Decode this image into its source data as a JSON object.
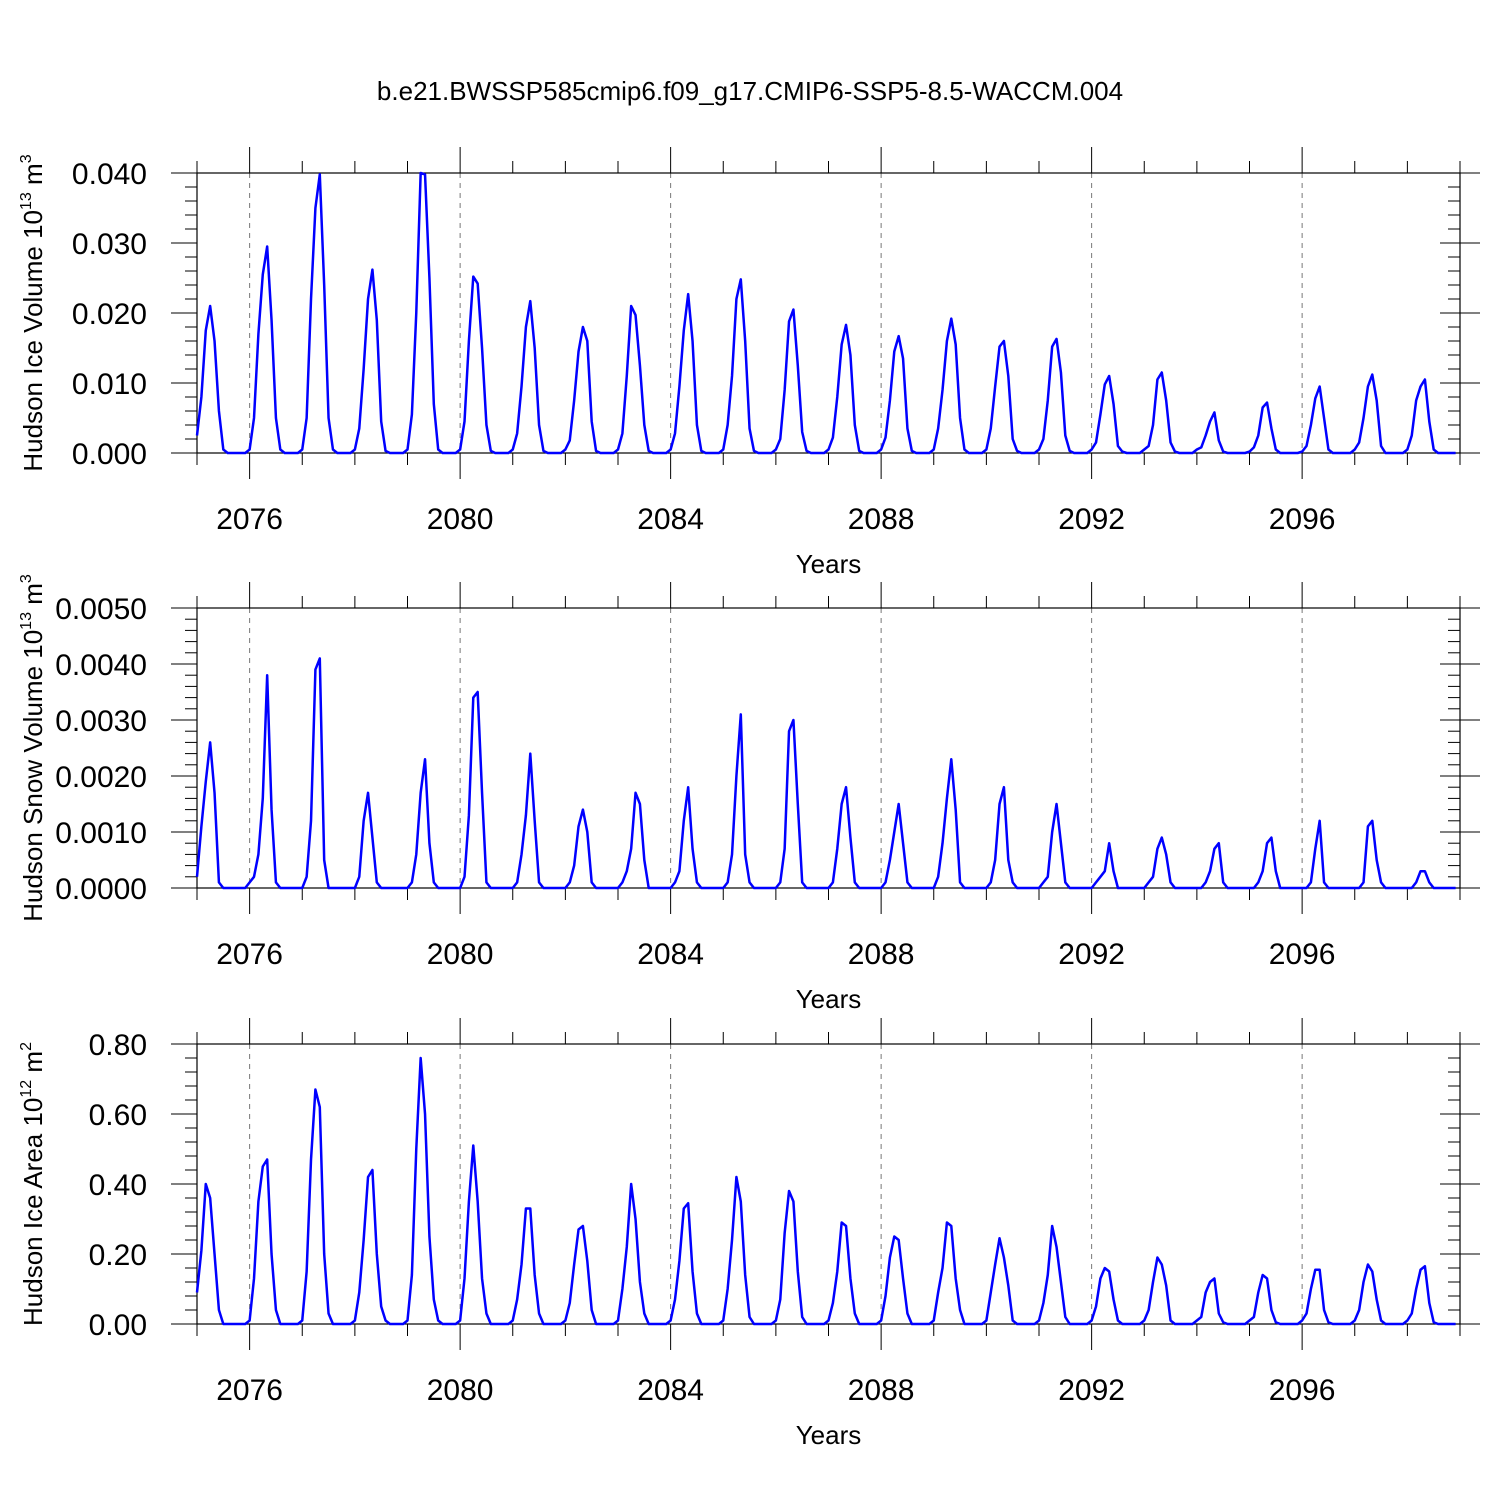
{
  "figure_title": "b.e21.BWSSP585cmip6.f09_g17.CMIP6-SSP5-8.5-WACCM.004",
  "chart_data": [
    {
      "type": "line",
      "title": "b.e21.BWSSP585cmip6.f09_g17.CMIP6-SSP5-8.5-WACCM.004",
      "xlabel": "Years",
      "ylabel": "Hudson Ice Volume 10",
      "ylabel_exp": "13",
      "ylabel_unit": " m",
      "ylabel_unit_exp": "3",
      "xlim": [
        2075,
        2099
      ],
      "ylim": [
        0,
        0.04
      ],
      "grid": "vertical dashed at major ticks",
      "x_ticks": [
        2076,
        2080,
        2084,
        2088,
        2092,
        2096
      ],
      "x_tick_labels": [
        "2076",
        "2080",
        "2084",
        "2088",
        "2092",
        "2096"
      ],
      "y_ticks": [
        0,
        0.01,
        0.02,
        0.03,
        0.04
      ],
      "y_tick_labels": [
        "0.000",
        "0.010",
        "0.020",
        "0.030",
        "0.040"
      ],
      "series": [
        {
          "name": "Hudson Ice Volume",
          "color": "#0000ff",
          "start_year": 2075,
          "step": "monthly",
          "values": [
            0.0025,
            0.008,
            0.0175,
            0.021,
            0.016,
            0.006,
            0.0005,
            0,
            0,
            0,
            0,
            0,
            0.0005,
            0.005,
            0.017,
            0.0255,
            0.0295,
            0.019,
            0.005,
            0.0005,
            0,
            0,
            0,
            0,
            0.0005,
            0.005,
            0.022,
            0.035,
            0.0398,
            0.024,
            0.005,
            0.0005,
            0,
            0,
            0,
            0,
            0.0005,
            0.0035,
            0.012,
            0.022,
            0.0262,
            0.019,
            0.0045,
            0.0003,
            0,
            0,
            0,
            0,
            0.0005,
            0.0055,
            0.02,
            0.04,
            0.0398,
            0.025,
            0.007,
            0.0005,
            0,
            0,
            0,
            0,
            0.0005,
            0.0045,
            0.016,
            0.0252,
            0.0242,
            0.015,
            0.004,
            0.0003,
            0,
            0,
            0,
            0,
            0.0005,
            0.0028,
            0.0095,
            0.018,
            0.0217,
            0.015,
            0.004,
            0.0003,
            0,
            0,
            0,
            0,
            0.0005,
            0.0018,
            0.0075,
            0.0145,
            0.018,
            0.016,
            0.0045,
            0.0003,
            0,
            0,
            0,
            0,
            0.0005,
            0.0028,
            0.011,
            0.021,
            0.0197,
            0.0125,
            0.004,
            0.0003,
            0,
            0,
            0,
            0,
            0.0005,
            0.0028,
            0.0095,
            0.0175,
            0.0227,
            0.016,
            0.004,
            0.0003,
            0,
            0,
            0,
            0,
            0.0005,
            0.004,
            0.011,
            0.022,
            0.0248,
            0.016,
            0.0035,
            0.0003,
            0,
            0,
            0,
            0,
            0.0005,
            0.002,
            0.009,
            0.0188,
            0.0205,
            0.0125,
            0.003,
            0.0003,
            0,
            0,
            0,
            0,
            0.0005,
            0.0022,
            0.008,
            0.0155,
            0.0183,
            0.014,
            0.004,
            0.0003,
            0,
            0,
            0,
            0,
            0.0005,
            0.0022,
            0.0075,
            0.0145,
            0.0167,
            0.0135,
            0.0035,
            0.0003,
            0,
            0,
            0,
            0,
            0.0005,
            0.0035,
            0.009,
            0.016,
            0.0192,
            0.0155,
            0.005,
            0.0005,
            0,
            0,
            0,
            0,
            0.0005,
            0.0035,
            0.0095,
            0.0152,
            0.016,
            0.011,
            0.002,
            0.0003,
            0,
            0,
            0,
            0,
            0.0005,
            0.002,
            0.0075,
            0.0152,
            0.0163,
            0.0115,
            0.0025,
            0.0003,
            0,
            0,
            0,
            0,
            0.0005,
            0.0015,
            0.0055,
            0.0098,
            0.011,
            0.007,
            0.001,
            0.0002,
            0,
            0,
            0,
            0,
            0.0005,
            0.001,
            0.004,
            0.0105,
            0.0115,
            0.0075,
            0.0015,
            0.0002,
            0,
            0,
            0,
            0,
            0.0005,
            0.0008,
            0.0025,
            0.0045,
            0.0058,
            0.0018,
            0.0002,
            0,
            0,
            0,
            0,
            0,
            0.0002,
            0.0008,
            0.0025,
            0.0065,
            0.0072,
            0.0035,
            0.0005,
            0,
            0,
            0,
            0,
            0,
            0.0002,
            0.001,
            0.004,
            0.0078,
            0.0095,
            0.005,
            0.0005,
            0,
            0,
            0,
            0,
            0,
            0.0005,
            0.0015,
            0.005,
            0.0095,
            0.0112,
            0.0075,
            0.001,
            0,
            0,
            0,
            0,
            0,
            0.0005,
            0.0025,
            0.0075,
            0.0095,
            0.0105,
            0.0045,
            0.0005,
            0,
            0,
            0,
            0,
            0
          ]
        }
      ]
    },
    {
      "type": "line",
      "xlabel": "Years",
      "ylabel": "Hudson Snow Volume 10",
      "ylabel_exp": "13",
      "ylabel_unit": " m",
      "ylabel_unit_exp": "3",
      "xlim": [
        2075,
        2099
      ],
      "ylim": [
        0,
        0.005
      ],
      "grid": "vertical dashed at major ticks",
      "x_ticks": [
        2076,
        2080,
        2084,
        2088,
        2092,
        2096
      ],
      "x_tick_labels": [
        "2076",
        "2080",
        "2084",
        "2088",
        "2092",
        "2096"
      ],
      "y_ticks": [
        0,
        0.001,
        0.002,
        0.003,
        0.004,
        0.005
      ],
      "y_tick_labels": [
        "0.0000",
        "0.0010",
        "0.0020",
        "0.0030",
        "0.0040",
        "0.0050"
      ],
      "series": [
        {
          "name": "Hudson Snow Volume",
          "color": "#0000ff",
          "start_year": 2075,
          "step": "monthly",
          "values": [
            0.0002,
            0.0011,
            0.0019,
            0.0026,
            0.0017,
            0.0001,
            0,
            0,
            0,
            0,
            0,
            0,
            0.0001,
            0.0002,
            0.0006,
            0.0016,
            0.0038,
            0.0014,
            0.0001,
            0,
            0,
            0,
            0,
            0,
            0,
            0.0002,
            0.0012,
            0.0039,
            0.0041,
            0.0005,
            0,
            0,
            0,
            0,
            0,
            0,
            0,
            0.0002,
            0.0012,
            0.0017,
            0.0009,
            0.0001,
            0,
            0,
            0,
            0,
            0,
            0,
            0,
            0.0001,
            0.0006,
            0.0017,
            0.0023,
            0.0008,
            0.0001,
            0,
            0,
            0,
            0,
            0,
            0,
            0.0002,
            0.0013,
            0.0034,
            0.0035,
            0.0017,
            0.0001,
            0,
            0,
            0,
            0,
            0,
            0,
            0.0001,
            0.0006,
            0.0013,
            0.0024,
            0.0012,
            0.0001,
            0,
            0,
            0,
            0,
            0,
            0,
            0.0001,
            0.0004,
            0.0011,
            0.0014,
            0.001,
            0.0001,
            0,
            0,
            0,
            0,
            0,
            0,
            0.0001,
            0.0003,
            0.0007,
            0.0017,
            0.0015,
            0.0005,
            0,
            0,
            0,
            0,
            0,
            0,
            0.0001,
            0.0003,
            0.0012,
            0.0018,
            0.0007,
            0.0001,
            0,
            0,
            0,
            0,
            0,
            0,
            0.0001,
            0.0006,
            0.002,
            0.0031,
            0.0006,
            0.0001,
            0,
            0,
            0,
            0,
            0,
            0,
            0.0001,
            0.0007,
            0.0028,
            0.003,
            0.0015,
            0.0001,
            0,
            0,
            0,
            0,
            0,
            0,
            0.0001,
            0.0007,
            0.0015,
            0.0018,
            0.0009,
            0.0001,
            0,
            0,
            0,
            0,
            0,
            0,
            0.0001,
            0.0005,
            0.001,
            0.0015,
            0.0008,
            0.0001,
            0,
            0,
            0,
            0,
            0,
            0,
            0.0002,
            0.0008,
            0.0016,
            0.0023,
            0.0014,
            0.0001,
            0,
            0,
            0,
            0,
            0,
            0,
            0.0001,
            0.0005,
            0.0015,
            0.0018,
            0.0005,
            0.0001,
            0,
            0,
            0,
            0,
            0,
            0,
            0.0001,
            0.0002,
            0.001,
            0.0015,
            0.0008,
            0.0001,
            0,
            0,
            0,
            0,
            0,
            0,
            0.0001,
            0.0002,
            0.0003,
            0.0008,
            0.0003,
            0,
            0,
            0,
            0,
            0,
            0,
            0,
            0.0001,
            0.0002,
            0.0007,
            0.0009,
            0.0006,
            0.0001,
            0,
            0,
            0,
            0,
            0,
            0,
            0,
            0.0001,
            0.0003,
            0.0007,
            0.0008,
            0.0001,
            0,
            0,
            0,
            0,
            0,
            0,
            0,
            0.0001,
            0.0003,
            0.0008,
            0.0009,
            0.0003,
            0,
            0,
            0,
            0,
            0,
            0,
            0,
            0.0001,
            0.0007,
            0.0012,
            0.0001,
            0,
            0,
            0,
            0,
            0,
            0,
            0,
            0,
            0.0001,
            0.0011,
            0.0012,
            0.0005,
            0.0001,
            0,
            0,
            0,
            0,
            0,
            0,
            0,
            0.0001,
            0.0003,
            0.0003,
            0.0001,
            0,
            0,
            0,
            0,
            0,
            0
          ]
        }
      ]
    },
    {
      "type": "line",
      "xlabel": "Years",
      "ylabel": "Hudson Ice Area 10",
      "ylabel_exp": "12",
      "ylabel_unit": " m",
      "ylabel_unit_exp": "2",
      "xlim": [
        2075,
        2099
      ],
      "ylim": [
        0,
        0.8
      ],
      "grid": "vertical dashed at major ticks",
      "x_ticks": [
        2076,
        2080,
        2084,
        2088,
        2092,
        2096
      ],
      "x_tick_labels": [
        "2076",
        "2080",
        "2084",
        "2088",
        "2092",
        "2096"
      ],
      "y_ticks": [
        0,
        0.2,
        0.4,
        0.6,
        0.8
      ],
      "y_tick_labels": [
        "0.00",
        "0.20",
        "0.40",
        "0.60",
        "0.80"
      ],
      "series": [
        {
          "name": "Hudson Ice Area",
          "color": "#0000ff",
          "start_year": 2075,
          "step": "monthly",
          "values": [
            0.09,
            0.21,
            0.4,
            0.36,
            0.2,
            0.04,
            0,
            0,
            0,
            0,
            0,
            0,
            0.01,
            0.13,
            0.35,
            0.45,
            0.47,
            0.2,
            0.04,
            0,
            0,
            0,
            0,
            0,
            0.01,
            0.15,
            0.47,
            0.67,
            0.62,
            0.2,
            0.03,
            0,
            0,
            0,
            0,
            0,
            0.01,
            0.09,
            0.24,
            0.42,
            0.44,
            0.2,
            0.05,
            0.01,
            0,
            0,
            0,
            0,
            0.01,
            0.14,
            0.5,
            0.76,
            0.6,
            0.25,
            0.07,
            0.01,
            0,
            0,
            0,
            0,
            0.01,
            0.13,
            0.35,
            0.51,
            0.35,
            0.13,
            0.03,
            0,
            0,
            0,
            0,
            0,
            0.01,
            0.07,
            0.17,
            0.33,
            0.33,
            0.14,
            0.03,
            0,
            0,
            0,
            0,
            0,
            0.01,
            0.06,
            0.17,
            0.27,
            0.28,
            0.18,
            0.04,
            0,
            0,
            0,
            0,
            0,
            0.01,
            0.1,
            0.22,
            0.4,
            0.3,
            0.12,
            0.03,
            0,
            0,
            0,
            0,
            0,
            0.01,
            0.07,
            0.18,
            0.33,
            0.345,
            0.15,
            0.03,
            0,
            0,
            0,
            0,
            0,
            0.01,
            0.1,
            0.24,
            0.42,
            0.35,
            0.14,
            0.02,
            0,
            0,
            0,
            0,
            0,
            0.01,
            0.07,
            0.26,
            0.38,
            0.35,
            0.15,
            0.02,
            0,
            0,
            0,
            0,
            0,
            0.01,
            0.06,
            0.15,
            0.29,
            0.28,
            0.13,
            0.03,
            0,
            0,
            0,
            0,
            0,
            0.01,
            0.08,
            0.19,
            0.25,
            0.24,
            0.13,
            0.03,
            0,
            0,
            0,
            0,
            0,
            0.01,
            0.09,
            0.16,
            0.29,
            0.28,
            0.13,
            0.04,
            0,
            0,
            0,
            0,
            0,
            0.01,
            0.09,
            0.17,
            0.245,
            0.19,
            0.11,
            0.01,
            0,
            0,
            0,
            0,
            0,
            0.01,
            0.06,
            0.14,
            0.28,
            0.22,
            0.12,
            0.02,
            0,
            0,
            0,
            0,
            0,
            0.01,
            0.05,
            0.13,
            0.16,
            0.15,
            0.07,
            0.01,
            0,
            0,
            0,
            0,
            0,
            0.01,
            0.04,
            0.12,
            0.19,
            0.17,
            0.11,
            0.01,
            0,
            0,
            0,
            0,
            0,
            0.01,
            0.02,
            0.09,
            0.12,
            0.13,
            0.03,
            0.005,
            0,
            0,
            0,
            0,
            0,
            0.01,
            0.02,
            0.09,
            0.14,
            0.13,
            0.04,
            0.005,
            0,
            0,
            0,
            0,
            0,
            0.01,
            0.03,
            0.1,
            0.155,
            0.155,
            0.04,
            0.005,
            0,
            0,
            0,
            0,
            0,
            0.01,
            0.04,
            0.12,
            0.17,
            0.15,
            0.07,
            0.01,
            0,
            0,
            0,
            0,
            0,
            0.01,
            0.03,
            0.1,
            0.155,
            0.165,
            0.06,
            0.005,
            0,
            0,
            0,
            0,
            0
          ]
        }
      ]
    }
  ]
}
